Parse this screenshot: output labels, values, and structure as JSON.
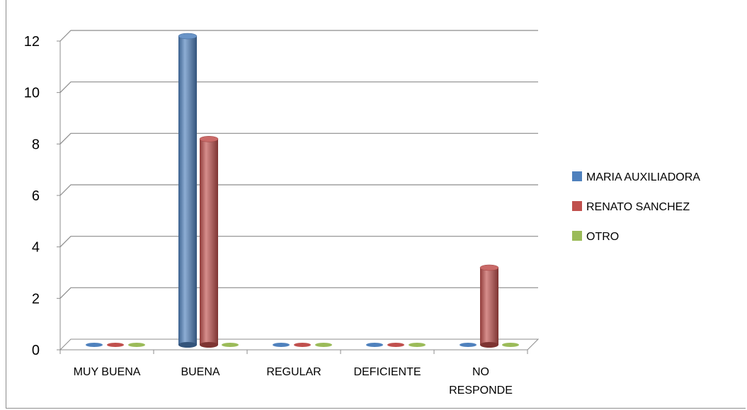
{
  "chart_data": {
    "type": "bar",
    "title": "",
    "xlabel": "",
    "ylabel": "",
    "categories": [
      "MUY BUENA",
      "BUENA",
      "REGULAR",
      "DEFICIENTE",
      "NO RESPONDE"
    ],
    "series": [
      {
        "name": "MARIA AUXILIADORA",
        "values": [
          0,
          12,
          0,
          0,
          0
        ],
        "color": "#4F81BD"
      },
      {
        "name": "RENATO SANCHEZ",
        "values": [
          0,
          8,
          0,
          0,
          3
        ],
        "color": "#C0504D"
      },
      {
        "name": "OTRO",
        "values": [
          0,
          0,
          0,
          0,
          0
        ],
        "color": "#9BBB59"
      }
    ],
    "ylim": [
      0,
      12
    ],
    "yticks": [
      "0",
      "2",
      "4",
      "6",
      "8",
      "10",
      "12"
    ],
    "grid": true,
    "legend": "right",
    "style": "3d-cylinder"
  }
}
